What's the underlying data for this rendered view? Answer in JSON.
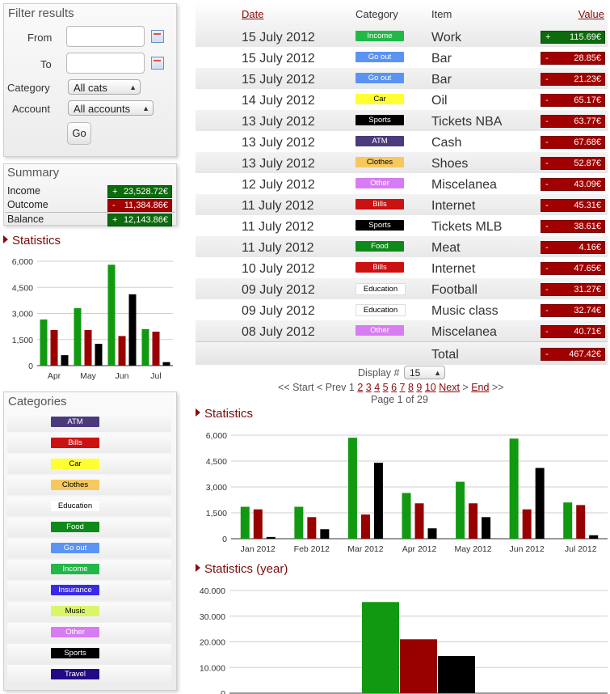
{
  "filter": {
    "title": "Filter results",
    "from_label": "From",
    "to_label": "To",
    "category_label": "Category",
    "category_value": "All cats",
    "account_label": "Account",
    "account_value": "All accounts",
    "go_label": "Go"
  },
  "summary": {
    "title": "Summary",
    "rows": [
      {
        "label": "Income",
        "sign": "+",
        "value": "23,528.72€",
        "kind": "pos"
      },
      {
        "label": "Outcome",
        "sign": "-",
        "value": "11,384.86€",
        "kind": "neg"
      },
      {
        "label": "Balance",
        "sign": "+",
        "value": "12,143.86€",
        "kind": "pos"
      }
    ]
  },
  "left_stats": {
    "title": "Statistics"
  },
  "categories_panel": {
    "title": "Categories",
    "items": [
      "ATM",
      "Bills",
      "Car",
      "Clothes",
      "Education",
      "Food",
      "Go out",
      "Income",
      "Insurance",
      "Music",
      "Other",
      "Sports",
      "Travel"
    ]
  },
  "category_colors": {
    "ATM": {
      "bg": "#4b3a7c",
      "fg": "#ffffff"
    },
    "Bills": {
      "bg": "#cc1111",
      "fg": "#ffffff"
    },
    "Car": {
      "bg": "#ffff33",
      "fg": "#000000"
    },
    "Clothes": {
      "bg": "#f7c85e",
      "fg": "#000000"
    },
    "Education": {
      "bg": "#ffffff",
      "fg": "#000000"
    },
    "Food": {
      "bg": "#0e8a1a",
      "fg": "#ffffff"
    },
    "Go out": {
      "bg": "#5b93f2",
      "fg": "#ffffff"
    },
    "Income": {
      "bg": "#22b847",
      "fg": "#ffffff"
    },
    "Insurance": {
      "bg": "#3a2ae8",
      "fg": "#ffffff"
    },
    "Music": {
      "bg": "#dbf56b",
      "fg": "#000000"
    },
    "Other": {
      "bg": "#d77cf2",
      "fg": "#ffffff"
    },
    "Sports": {
      "bg": "#000000",
      "fg": "#ffffff"
    },
    "Travel": {
      "bg": "#230a84",
      "fg": "#ffffff"
    }
  },
  "table": {
    "headers": {
      "date": "Date",
      "category": "Category",
      "item": "Item",
      "value": "Value"
    },
    "rows": [
      {
        "date": "15 July 2012",
        "category": "Income",
        "item": "Work",
        "sign": "+",
        "value": "115.69€",
        "kind": "pos"
      },
      {
        "date": "15 July 2012",
        "category": "Go out",
        "item": "Bar",
        "sign": "-",
        "value": "28.85€",
        "kind": "neg"
      },
      {
        "date": "15 July 2012",
        "category": "Go out",
        "item": "Bar",
        "sign": "-",
        "value": "21.23€",
        "kind": "neg"
      },
      {
        "date": "14 July 2012",
        "category": "Car",
        "item": "Oil",
        "sign": "-",
        "value": "65.17€",
        "kind": "neg"
      },
      {
        "date": "13 July 2012",
        "category": "Sports",
        "item": "Tickets NBA",
        "sign": "-",
        "value": "63.77€",
        "kind": "neg"
      },
      {
        "date": "13 July 2012",
        "category": "ATM",
        "item": "Cash",
        "sign": "-",
        "value": "67.68€",
        "kind": "neg"
      },
      {
        "date": "13 July 2012",
        "category": "Clothes",
        "item": "Shoes",
        "sign": "-",
        "value": "52.87€",
        "kind": "neg"
      },
      {
        "date": "12 July 2012",
        "category": "Other",
        "item": "Miscelanea",
        "sign": "-",
        "value": "43.09€",
        "kind": "neg"
      },
      {
        "date": "11 July 2012",
        "category": "Bills",
        "item": "Internet",
        "sign": "-",
        "value": "45.31€",
        "kind": "neg"
      },
      {
        "date": "11 July 2012",
        "category": "Sports",
        "item": "Tickets MLB",
        "sign": "-",
        "value": "38.61€",
        "kind": "neg"
      },
      {
        "date": "11 July 2012",
        "category": "Food",
        "item": "Meat",
        "sign": "-",
        "value": "4.16€",
        "kind": "neg"
      },
      {
        "date": "10 July 2012",
        "category": "Bills",
        "item": "Internet",
        "sign": "-",
        "value": "47.65€",
        "kind": "neg"
      },
      {
        "date": "09 July 2012",
        "category": "Education",
        "item": "Football",
        "sign": "-",
        "value": "31.27€",
        "kind": "neg"
      },
      {
        "date": "09 July 2012",
        "category": "Education",
        "item": "Music class",
        "sign": "-",
        "value": "32.74€",
        "kind": "neg"
      },
      {
        "date": "08 July 2012",
        "category": "Other",
        "item": "Miscelanea",
        "sign": "-",
        "value": "40.71€",
        "kind": "neg"
      }
    ],
    "total": {
      "label": "Total",
      "sign": "-",
      "value": "467.42€"
    }
  },
  "pager": {
    "display_label": "Display #",
    "display_value": "15",
    "prefix": "<< Start < Prev",
    "current": "1",
    "pages": [
      "2",
      "3",
      "4",
      "5",
      "6",
      "7",
      "8",
      "9",
      "10"
    ],
    "next": "Next",
    "gt": ">",
    "end": "End",
    "suffix": ">>",
    "page_info": "Page 1 of 29"
  },
  "right_stats": {
    "title": "Statistics"
  },
  "year_stats": {
    "title": "Statistics (year)"
  },
  "colors": {
    "income": "#119911",
    "outcome": "#990000",
    "balance": "#000000",
    "accent": "#8b0a0a"
  },
  "chart_data": [
    {
      "id": "left",
      "type": "bar",
      "categories": [
        "Apr",
        "May",
        "Jun",
        "Jul"
      ],
      "series": [
        {
          "values": [
            2650,
            3300,
            5800,
            2100
          ]
        },
        {
          "values": [
            2050,
            2050,
            1700,
            1950
          ]
        },
        {
          "values": [
            600,
            1250,
            4100,
            200
          ]
        }
      ],
      "ylim": [
        0,
        6000
      ],
      "yticks": [
        "0",
        "1,500",
        "3,000",
        "4,500",
        "6,000"
      ],
      "grid": true
    },
    {
      "id": "right",
      "type": "bar",
      "categories": [
        "Jan 2012",
        "Feb 2012",
        "Mar 2012",
        "Apr 2012",
        "May 2012",
        "Jun 2012",
        "Jul 2012"
      ],
      "series": [
        {
          "values": [
            1850,
            1850,
            5850,
            2650,
            3300,
            5800,
            2100
          ]
        },
        {
          "values": [
            1700,
            1250,
            1400,
            2050,
            2050,
            1700,
            1950
          ]
        },
        {
          "values": [
            100,
            550,
            4400,
            600,
            1250,
            4100,
            200
          ]
        }
      ],
      "ylim": [
        0,
        6000
      ],
      "yticks": [
        "0",
        "1,500",
        "3,000",
        "4,500",
        "6,000"
      ],
      "grid": true
    },
    {
      "id": "year",
      "type": "bar",
      "categories": [
        "2012"
      ],
      "series": [
        {
          "values": [
            35500
          ]
        },
        {
          "values": [
            21000
          ]
        },
        {
          "values": [
            14500
          ]
        }
      ],
      "ylim": [
        0,
        40000
      ],
      "yticks": [
        "0",
        "10.000",
        "20.000",
        "30.000",
        "40.000"
      ],
      "grid": true
    }
  ]
}
